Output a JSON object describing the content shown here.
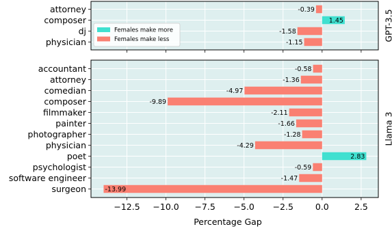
{
  "chart_data": {
    "type": "bar",
    "orientation": "horizontal",
    "xlabel": "Percentage Gap",
    "xlim": [
      -14.8,
      3.6
    ],
    "xticks": [
      {
        "value": -12.5,
        "label": "−12.5"
      },
      {
        "value": -10.0,
        "label": "−10.0"
      },
      {
        "value": -7.5,
        "label": "−7.5"
      },
      {
        "value": -5.0,
        "label": "−5.0"
      },
      {
        "value": -2.5,
        "label": "−2.5"
      },
      {
        "value": 0.0,
        "label": "0.0"
      },
      {
        "value": 2.5,
        "label": "2.5"
      }
    ],
    "grid": true,
    "colors": {
      "more": "#40e0d0",
      "less": "#fa8072",
      "panel_bg": "#deefef",
      "grid": "#ffffff"
    },
    "legend": {
      "location": "left",
      "entries": [
        {
          "label": "Females make more",
          "color_key": "more"
        },
        {
          "label": "Females make less",
          "color_key": "less"
        }
      ]
    },
    "panels": [
      {
        "facet_label": "GPT-3.5",
        "categories": [
          "attorney",
          "composer",
          "dj",
          "physician"
        ],
        "values": [
          -0.39,
          1.45,
          -1.58,
          -1.15
        ],
        "labels": [
          "-0.39",
          "1.45",
          "-1.58",
          "-1.15"
        ]
      },
      {
        "facet_label": "Llama 3",
        "categories": [
          "accountant",
          "attorney",
          "comedian",
          "composer",
          "filmmaker",
          "painter",
          "photographer",
          "physician",
          "poet",
          "psychologist",
          "software engineer",
          "surgeon"
        ],
        "values": [
          -0.58,
          -1.36,
          -4.97,
          -9.89,
          -2.11,
          -1.66,
          -1.28,
          -4.29,
          2.83,
          -0.59,
          -1.47,
          -13.99
        ],
        "labels": [
          "-0.58",
          "-1.36",
          "-4.97",
          "-9.89",
          "-2.11",
          "-1.66",
          "-1.28",
          "-4.29",
          "2.83",
          "-0.59",
          "-1.47",
          "-13.99"
        ]
      }
    ]
  }
}
